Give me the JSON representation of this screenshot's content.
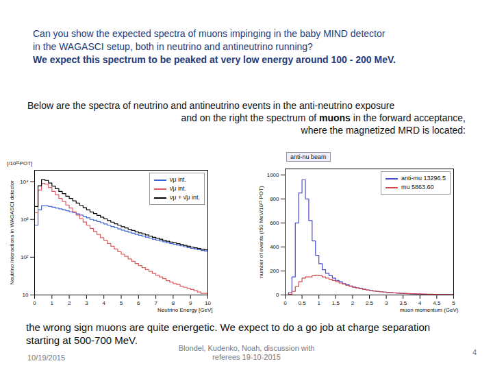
{
  "question": [
    "Can you show the expected spectra of muons impinging in the baby MIND detector",
    "in the WAGASCI setup, both in neutrino and antineutrino running?"
  ],
  "expectation": "We expect this spectrum to be peaked at very low energy around 100 - 200 MeV.",
  "intro": {
    "lines": [
      "Below are the spectra of neutrino and antineutrino events in the anti-neutrino exposure",
      "and on the right the spectrum of muons in the forward acceptance,",
      "where the magnetized MRD is located:"
    ],
    "emphasis": "muons"
  },
  "conclusion": [
    "the wrong sign muons are quite energetic. We expect to do a go job at charge separation",
    "starting at 500-700 MeV."
  ],
  "footer": {
    "date": "10/19/2015",
    "authors": [
      "Blondel, Kudenko, Noah, discussion with",
      "referees 19-10-2015"
    ],
    "page": "4"
  },
  "chart_data": [
    {
      "type": "histogram",
      "x_label": "Neutrino Energy [GeV]",
      "y_label": "Neutrino interactions in WAGASCI detector",
      "y_units": "[/10²¹POT]",
      "log": "y",
      "legend": "top-right",
      "bins": [
        0,
        0.2,
        0.4,
        0.6,
        0.8,
        1,
        1.2,
        1.4,
        1.6,
        1.8,
        2,
        2.2,
        2.4,
        2.6,
        2.8,
        3,
        3.2,
        3.4,
        3.6,
        3.8,
        4,
        4.2,
        4.4,
        4.6,
        4.8,
        5,
        5.2,
        5.4,
        5.6,
        5.8,
        6,
        6.2,
        6.4,
        6.6,
        6.8,
        7,
        7.2,
        7.4,
        7.6,
        7.8,
        8,
        8.2,
        8.4,
        8.6,
        8.8,
        9,
        9.2,
        9.4,
        9.6,
        9.8,
        10
      ],
      "xlim": [
        0,
        10
      ],
      "xticks": [
        0,
        1,
        2,
        3,
        4,
        5,
        6,
        7,
        8,
        9,
        10
      ],
      "ylim": [
        10,
        20000
      ],
      "yticks": [
        10,
        {
          "value": 100,
          "label": "10²"
        },
        {
          "value": 1000,
          "label": "10³"
        },
        {
          "value": 10000,
          "label": "10⁴"
        }
      ],
      "series": [
        {
          "name": "νμ int.",
          "color": "#3d63d6",
          "values": [
            700,
            1800,
            2300,
            2300,
            2200,
            2100,
            2000,
            1900,
            1800,
            1700,
            1600,
            1500,
            1400,
            1300,
            1200,
            1100,
            1000,
            950,
            880,
            820,
            760,
            700,
            650,
            600,
            560,
            520,
            490,
            460,
            430,
            400,
            380,
            360,
            340,
            320,
            300,
            285,
            270,
            255,
            240,
            230,
            220,
            210,
            200,
            190,
            180,
            172,
            165,
            158,
            150,
            145
          ]
        },
        {
          "name": "ν̄μ int.",
          "color": "#e0585e",
          "values": [
            1500,
            6000,
            9000,
            8500,
            7000,
            5500,
            4500,
            3600,
            3000,
            2400,
            2000,
            1600,
            1300,
            1050,
            850,
            700,
            580,
            480,
            400,
            330,
            280,
            230,
            195,
            165,
            140,
            120,
            105,
            90,
            78,
            68,
            60,
            53,
            47,
            42,
            37,
            33,
            30,
            27,
            24,
            22,
            20,
            19,
            17,
            16,
            15,
            14,
            13,
            12,
            11,
            11
          ]
        },
        {
          "name": "νμ + ν̄μ int.",
          "color": "#000000",
          "values": [
            2200,
            7800,
            11300,
            10800,
            9200,
            7600,
            6500,
            5500,
            4800,
            4100,
            3600,
            3100,
            2700,
            2350,
            2050,
            1800,
            1580,
            1430,
            1280,
            1150,
            1040,
            930,
            845,
            765,
            700,
            640,
            595,
            550,
            508,
            468,
            440,
            413,
            387,
            362,
            337,
            318,
            300,
            282,
            264,
            252,
            240,
            229,
            217,
            206,
            195,
            186,
            178,
            170,
            161,
            156
          ]
        }
      ]
    },
    {
      "type": "histogram",
      "title": "anti-nu beam",
      "x_label": "muon momentum (GeV)",
      "y_label": "number of events (/50 MeV/10²¹ POT)",
      "legend": "top-right",
      "bins": [
        0,
        0.1,
        0.2,
        0.3,
        0.4,
        0.5,
        0.6,
        0.7,
        0.8,
        0.9,
        1,
        1.1,
        1.2,
        1.3,
        1.4,
        1.5,
        1.6,
        1.7,
        1.8,
        1.9,
        2,
        2.1,
        2.2,
        2.3,
        2.4,
        2.5,
        2.6,
        2.7,
        2.8,
        2.9,
        3,
        3.1,
        3.2,
        3.3,
        3.4,
        3.5,
        3.6,
        3.7,
        3.8,
        3.9,
        4,
        4.1,
        4.2,
        4.3,
        4.4,
        4.5,
        4.6,
        4.7,
        4.8,
        4.9,
        5
      ],
      "xlim": [
        0,
        5
      ],
      "xticks": [
        0,
        0.5,
        1,
        1.5,
        2,
        2.5,
        3,
        3.5,
        4,
        4.5,
        5
      ],
      "ylim": [
        0,
        1050
      ],
      "yticks": [
        0,
        200,
        400,
        600,
        800,
        1000
      ],
      "series": [
        {
          "name": "anti-mu 13296.5",
          "color": "#4b4bd0",
          "values": [
            0,
            20,
            150,
            600,
            850,
            960,
            800,
            620,
            450,
            330,
            260,
            210,
            180,
            160,
            140,
            120,
            110,
            95,
            85,
            75,
            65,
            60,
            55,
            48,
            42,
            38,
            34,
            30,
            27,
            24,
            21,
            19,
            17,
            15,
            13,
            12,
            10,
            9,
            8,
            7,
            6,
            6,
            5,
            5,
            4,
            4,
            3,
            3,
            3,
            2
          ]
        },
        {
          "name": "mu 5863.60",
          "color": "#d04848",
          "values": [
            0,
            5,
            30,
            70,
            110,
            140,
            150,
            150,
            160,
            165,
            160,
            150,
            140,
            130,
            120,
            110,
            100,
            90,
            80,
            72,
            65,
            58,
            52,
            46,
            41,
            37,
            33,
            30,
            27,
            24,
            22,
            20,
            18,
            16,
            14,
            13,
            12,
            11,
            10,
            9,
            8,
            7,
            7,
            6,
            5,
            5,
            4,
            4,
            3,
            3
          ]
        }
      ]
    }
  ]
}
